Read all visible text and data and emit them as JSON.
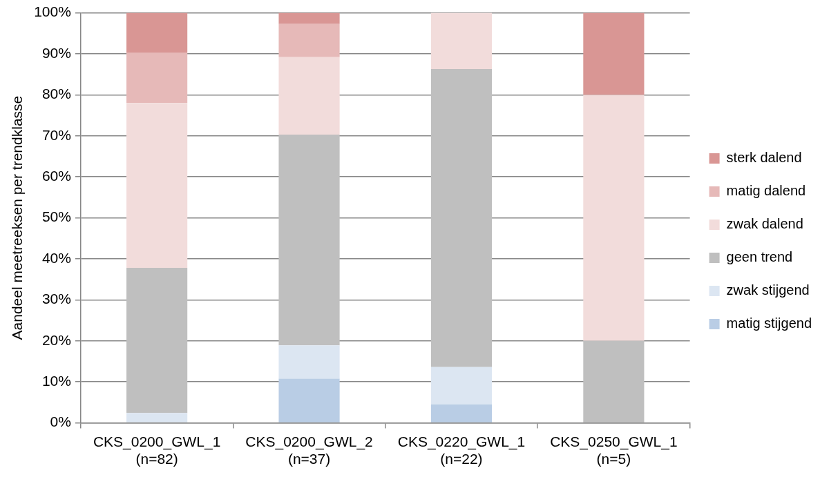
{
  "chart_data": {
    "type": "bar",
    "stacked": true,
    "ylabel": "Aandeel meetreeksen per trendklasse",
    "categories": [
      "CKS_0200_GWL_1\n(n=82)",
      "CKS_0200_GWL_2\n(n=37)",
      "CKS_0220_GWL_1\n(n=22)",
      "CKS_0250_GWL_1\n(n=5)"
    ],
    "series": [
      {
        "name": "matig stijgend",
        "color": "#b9cde5",
        "values": [
          0,
          10.8,
          4.5,
          0
        ]
      },
      {
        "name": "zwak stijgend",
        "color": "#dce6f2",
        "values": [
          2.4,
          8.1,
          9.1,
          0
        ]
      },
      {
        "name": "geen trend",
        "color": "#bfbfbf",
        "values": [
          35.4,
          51.4,
          72.7,
          20
        ]
      },
      {
        "name": "zwak dalend",
        "color": "#f2dcdb",
        "values": [
          40.2,
          18.9,
          13.7,
          60
        ]
      },
      {
        "name": "matig dalend",
        "color": "#e6b9b8",
        "values": [
          12.2,
          8.1,
          0,
          0
        ]
      },
      {
        "name": "sterk dalend",
        "color": "#d99694",
        "values": [
          9.8,
          2.7,
          0,
          20
        ]
      }
    ],
    "ylim": [
      0,
      100
    ],
    "yticks": [
      {
        "value": 0,
        "label": "0%"
      },
      {
        "value": 10,
        "label": "10%"
      },
      {
        "value": 20,
        "label": "20%"
      },
      {
        "value": 30,
        "label": "30%"
      },
      {
        "value": 40,
        "label": "40%"
      },
      {
        "value": 50,
        "label": "50%"
      },
      {
        "value": 60,
        "label": "60%"
      },
      {
        "value": 70,
        "label": "70%"
      },
      {
        "value": 80,
        "label": "80%"
      },
      {
        "value": 90,
        "label": "90%"
      },
      {
        "value": 100,
        "label": "100%"
      }
    ],
    "grid": "y",
    "legend": "right"
  }
}
